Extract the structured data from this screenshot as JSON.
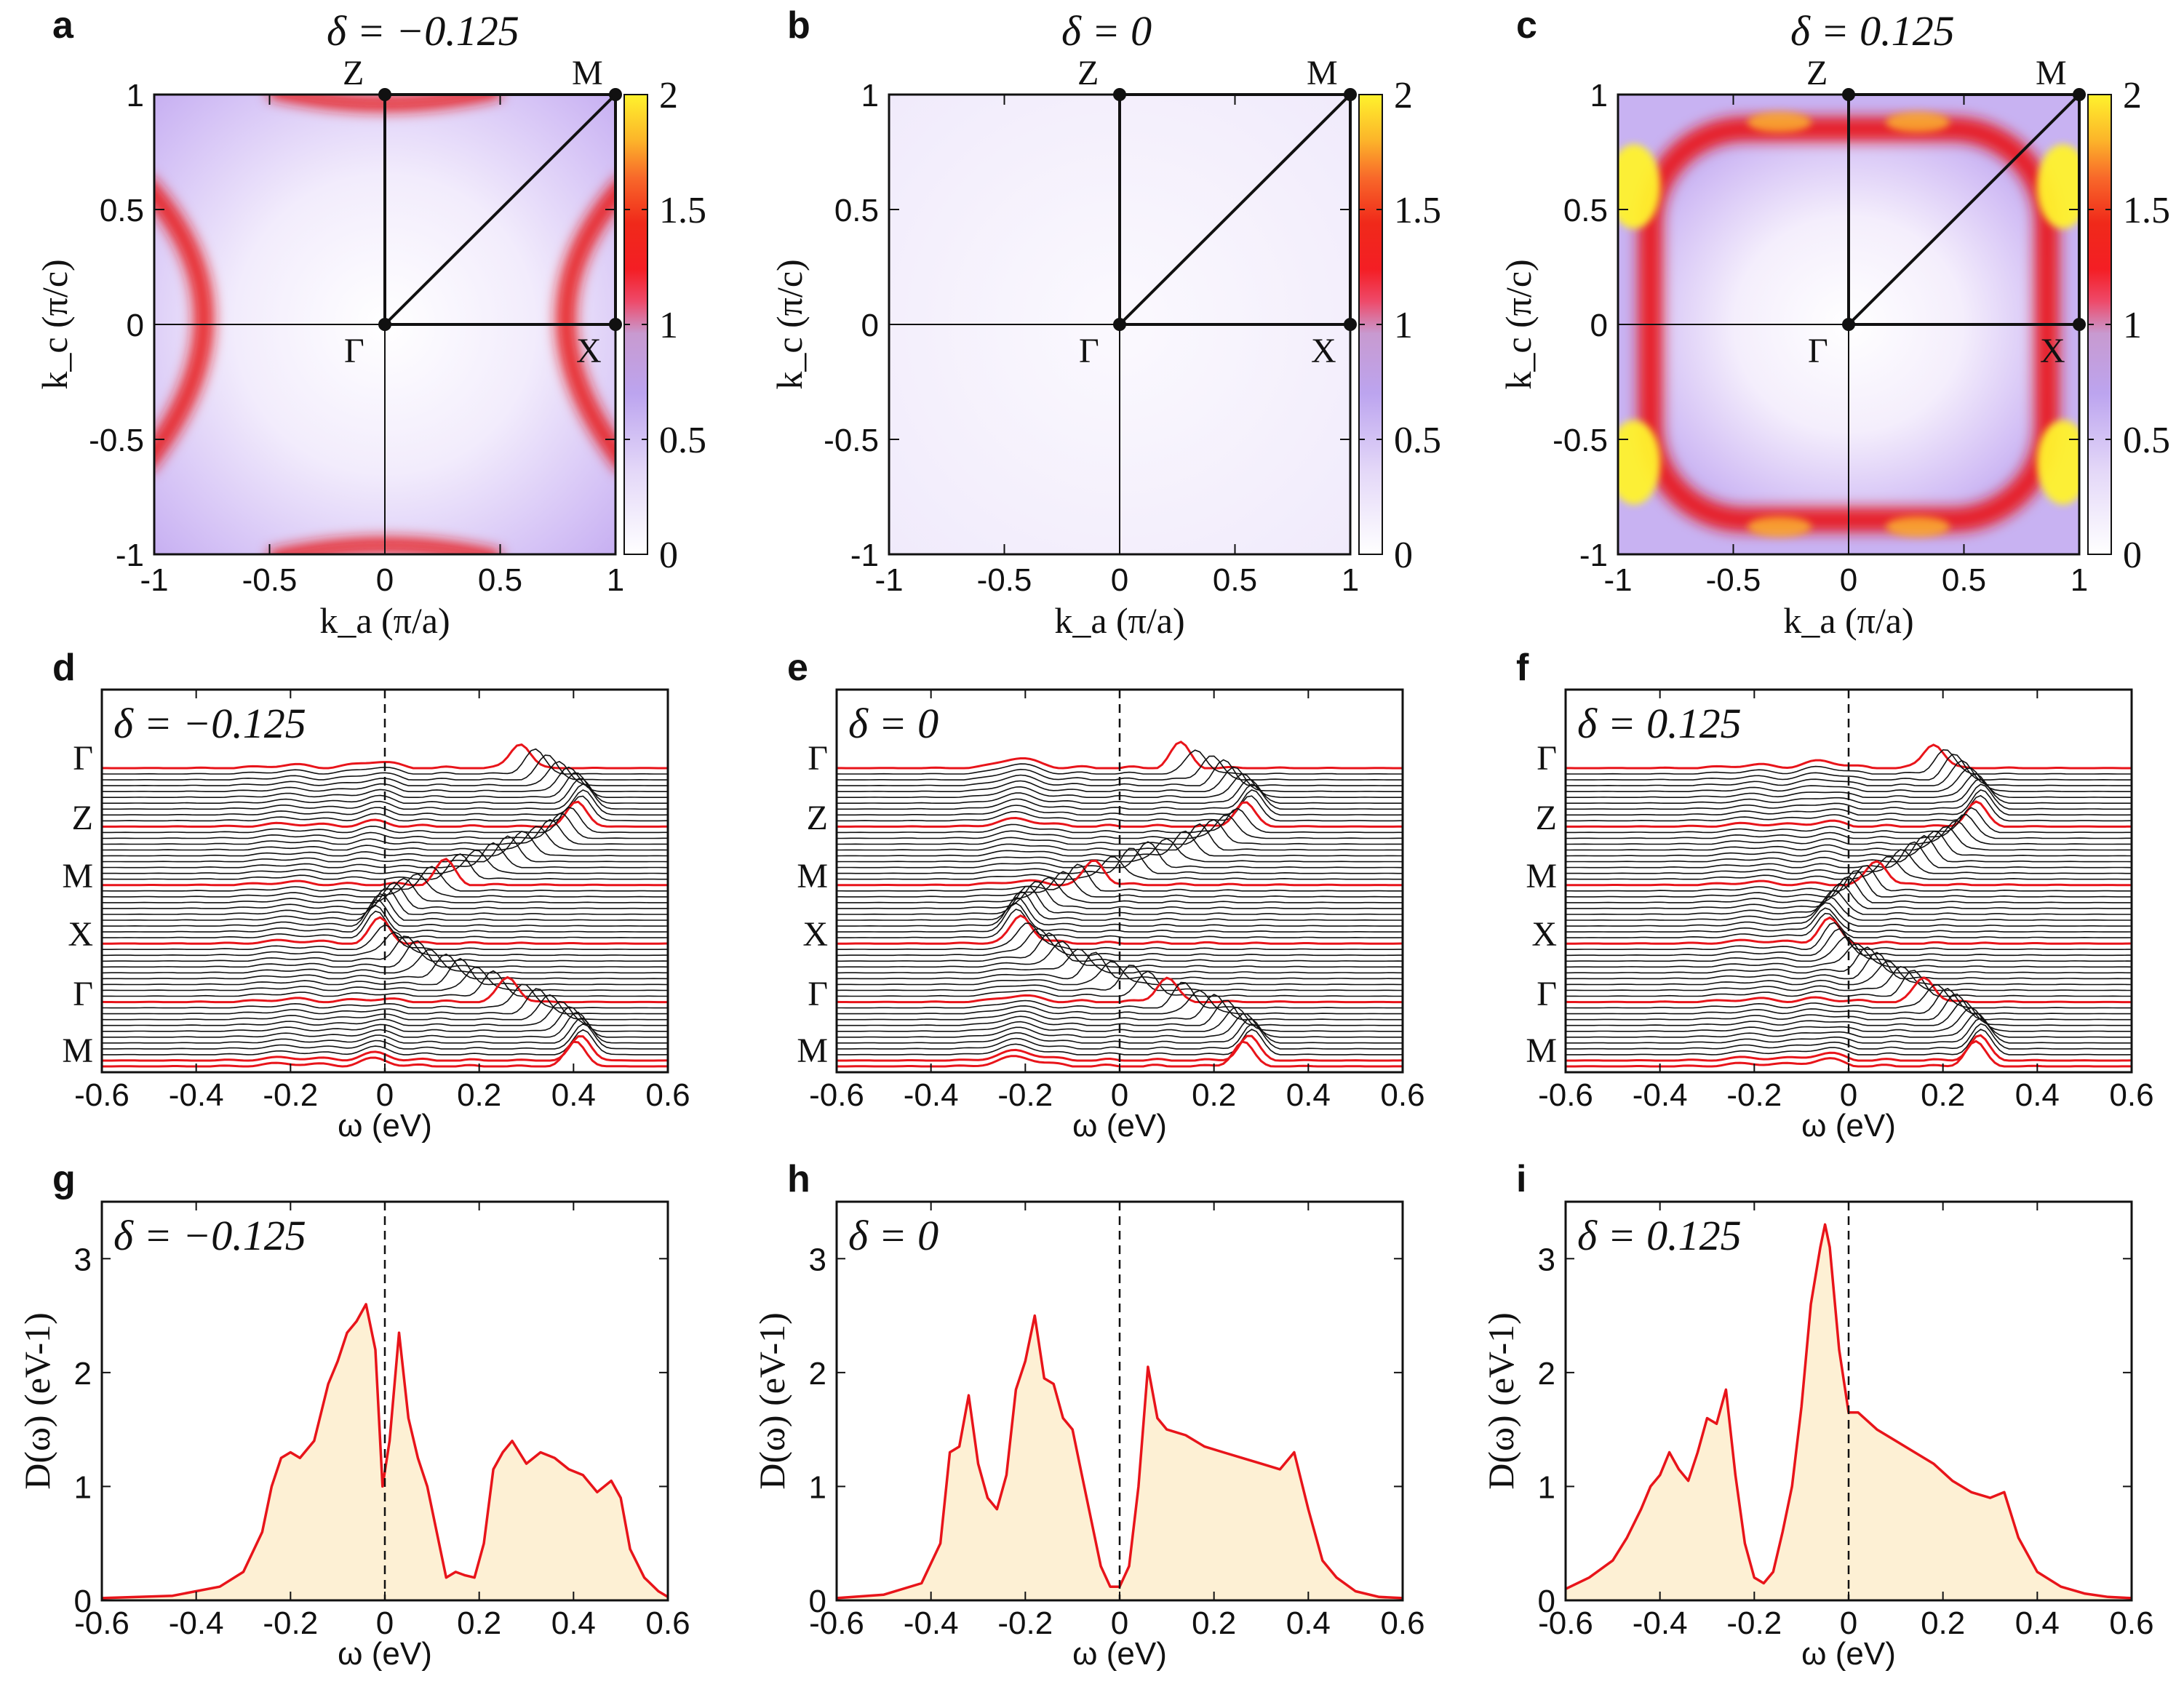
{
  "figure": {
    "panel_letters": [
      "a",
      "b",
      "c",
      "d",
      "e",
      "f",
      "g",
      "h",
      "i"
    ],
    "colors": {
      "red": "#e8141a",
      "fill": "#fdf0d4",
      "lavender": "#c9b3f2",
      "yellow": "#fff22a"
    }
  },
  "chart_data": [
    {
      "panel": "a",
      "type": "heatmap",
      "title": "δ = −0.125",
      "xlabel": "k_a (π/a)",
      "ylabel": "k_c (π/c)",
      "xlim": [
        -1,
        1
      ],
      "ylim": [
        -1,
        1
      ],
      "xticks": [
        "-1",
        "-0.5",
        "0",
        "0.5",
        "1"
      ],
      "yticks": [
        "-1",
        "-0.5",
        "0",
        "0.5",
        "1"
      ],
      "colorbar": {
        "range": [
          0,
          2
        ],
        "ticks": [
          "0",
          "0.5",
          "1",
          "1.5",
          "2"
        ]
      },
      "symmetry_points": [
        {
          "label": "Γ",
          "k": [
            0,
            0
          ]
        },
        {
          "label": "Z",
          "k": [
            0,
            1
          ]
        },
        {
          "label": "M",
          "k": [
            1,
            1
          ]
        },
        {
          "label": "X",
          "k": [
            1,
            0
          ]
        }
      ],
      "description_features": "Red arcs near ka=±0.6..1 and edges ky=±1; lavender background"
    },
    {
      "panel": "b",
      "type": "heatmap",
      "title": "δ = 0",
      "xlabel": "k_a (π/a)",
      "ylabel": "k_c (π/c)",
      "xlim": [
        -1,
        1
      ],
      "ylim": [
        -1,
        1
      ],
      "xticks": [
        "-1",
        "-0.5",
        "0",
        "0.5",
        "1"
      ],
      "yticks": [
        "-1",
        "-0.5",
        "0",
        "0.5",
        "1"
      ],
      "colorbar": {
        "range": [
          0,
          2
        ],
        "ticks": [
          "0",
          "0.5",
          "1",
          "1.5",
          "2"
        ]
      },
      "symmetry_points": [
        {
          "label": "Γ",
          "k": [
            0,
            0
          ]
        },
        {
          "label": "Z",
          "k": [
            0,
            1
          ]
        },
        {
          "label": "M",
          "k": [
            1,
            1
          ]
        },
        {
          "label": "X",
          "k": [
            1,
            0
          ]
        }
      ]
    },
    {
      "panel": "c",
      "type": "heatmap",
      "title": "δ = 0.125",
      "xlabel": "k_a (π/a)",
      "ylabel": "k_c (π/c)",
      "xlim": [
        -1,
        1
      ],
      "ylim": [
        -1,
        1
      ],
      "xticks": [
        "-1",
        "-0.5",
        "0",
        "0.5",
        "1"
      ],
      "yticks": [
        "-1",
        "-0.5",
        "0",
        "0.5",
        "1"
      ],
      "colorbar": {
        "range": [
          0,
          2
        ],
        "ticks": [
          "0",
          "0.5",
          "1",
          "1.5",
          "2"
        ]
      },
      "symmetry_points": [
        {
          "label": "Γ",
          "k": [
            0,
            0
          ]
        },
        {
          "label": "Z",
          "k": [
            0,
            1
          ]
        },
        {
          "label": "M",
          "k": [
            1,
            1
          ]
        },
        {
          "label": "X",
          "k": [
            1,
            0
          ]
        }
      ]
    },
    {
      "panel": "d",
      "type": "line",
      "title": "δ = −0.125",
      "xlabel": "ω (eV)",
      "xlim": [
        -0.6,
        0.6
      ],
      "xticks": [
        "-0.6",
        "-0.4",
        "-0.2",
        "0",
        "0.2",
        "0.4",
        "0.6"
      ],
      "path_labels": [
        "Γ",
        "Z",
        "M",
        "X",
        "Γ",
        "M"
      ],
      "peak_positions_eV": [
        -0.02,
        0.5
      ]
    },
    {
      "panel": "e",
      "type": "line",
      "title": "δ = 0",
      "xlabel": "ω (eV)",
      "xlim": [
        -0.6,
        0.6
      ],
      "xticks": [
        "-0.6",
        "-0.4",
        "-0.2",
        "0",
        "0.2",
        "0.4",
        "0.6"
      ],
      "path_labels": [
        "Γ",
        "Z",
        "M",
        "X",
        "Γ",
        "M"
      ],
      "peak_positions_eV": [
        -0.22,
        0.05,
        0.37
      ]
    },
    {
      "panel": "f",
      "type": "line",
      "title": "δ = 0.125",
      "xlabel": "ω (eV)",
      "xlim": [
        -0.6,
        0.6
      ],
      "xticks": [
        "-0.6",
        "-0.4",
        "-0.2",
        "0",
        "0.2",
        "0.4",
        "0.6"
      ],
      "path_labels": [
        "Γ",
        "Z",
        "M",
        "X",
        "Γ",
        "M"
      ],
      "peak_positions_eV": [
        -0.05,
        0.34
      ]
    },
    {
      "panel": "g",
      "type": "area",
      "title": "δ = −0.125",
      "xlabel": "ω (eV)",
      "ylabel": "D(ω) (eV-1)",
      "xlim": [
        -0.6,
        0.6
      ],
      "ylim": [
        0,
        3.5
      ],
      "xticks": [
        "-0.6",
        "-0.4",
        "-0.2",
        "0",
        "0.2",
        "0.4",
        "0.6"
      ],
      "yticks": [
        "0",
        "1",
        "2",
        "3"
      ],
      "x": [
        -0.6,
        -0.45,
        -0.35,
        -0.3,
        -0.26,
        -0.24,
        -0.22,
        -0.2,
        -0.18,
        -0.15,
        -0.12,
        -0.1,
        -0.08,
        -0.06,
        -0.04,
        -0.02,
        -0.005,
        0.01,
        0.03,
        0.05,
        0.07,
        0.09,
        0.11,
        0.13,
        0.15,
        0.17,
        0.19,
        0.21,
        0.23,
        0.25,
        0.27,
        0.3,
        0.33,
        0.36,
        0.39,
        0.42,
        0.45,
        0.48,
        0.5,
        0.52,
        0.55,
        0.58,
        0.6
      ],
      "y": [
        0.02,
        0.04,
        0.12,
        0.25,
        0.6,
        1.0,
        1.25,
        1.3,
        1.25,
        1.4,
        1.9,
        2.1,
        2.35,
        2.45,
        2.6,
        2.2,
        1.0,
        1.4,
        2.35,
        1.6,
        1.25,
        1.0,
        0.6,
        0.2,
        0.25,
        0.22,
        0.2,
        0.5,
        1.15,
        1.3,
        1.4,
        1.2,
        1.3,
        1.25,
        1.15,
        1.1,
        0.95,
        1.05,
        0.9,
        0.45,
        0.2,
        0.08,
        0.03
      ]
    },
    {
      "panel": "h",
      "type": "area",
      "title": "δ = 0",
      "xlabel": "ω (eV)",
      "ylabel": "D(ω) (eV-1)",
      "xlim": [
        -0.6,
        0.6
      ],
      "ylim": [
        0,
        3.5
      ],
      "xticks": [
        "-0.6",
        "-0.4",
        "-0.2",
        "0",
        "0.2",
        "0.4",
        "0.6"
      ],
      "yticks": [
        "0",
        "1",
        "2",
        "3"
      ],
      "x": [
        -0.6,
        -0.5,
        -0.42,
        -0.38,
        -0.36,
        -0.34,
        -0.32,
        -0.3,
        -0.28,
        -0.26,
        -0.24,
        -0.22,
        -0.2,
        -0.18,
        -0.16,
        -0.14,
        -0.12,
        -0.1,
        -0.08,
        -0.06,
        -0.04,
        -0.02,
        0,
        0.02,
        0.04,
        0.06,
        0.08,
        0.1,
        0.14,
        0.18,
        0.22,
        0.26,
        0.3,
        0.34,
        0.37,
        0.4,
        0.43,
        0.46,
        0.5,
        0.55,
        0.6
      ],
      "y": [
        0.02,
        0.05,
        0.15,
        0.5,
        1.3,
        1.35,
        1.8,
        1.2,
        0.9,
        0.8,
        1.1,
        1.85,
        2.1,
        2.5,
        1.95,
        1.9,
        1.6,
        1.5,
        1.1,
        0.7,
        0.3,
        0.12,
        0.12,
        0.3,
        1.0,
        2.05,
        1.6,
        1.5,
        1.45,
        1.35,
        1.3,
        1.25,
        1.2,
        1.15,
        1.3,
        0.8,
        0.35,
        0.2,
        0.08,
        0.03,
        0.02
      ]
    },
    {
      "panel": "i",
      "type": "area",
      "title": "δ = 0.125",
      "xlabel": "ω (eV)",
      "ylabel": "D(ω) (eV-1)",
      "xlim": [
        -0.6,
        0.6
      ],
      "ylim": [
        0,
        3.5
      ],
      "xticks": [
        "-0.6",
        "-0.4",
        "-0.2",
        "0",
        "0.2",
        "0.4",
        "0.6"
      ],
      "yticks": [
        "0",
        "1",
        "2",
        "3"
      ],
      "x": [
        -0.6,
        -0.55,
        -0.5,
        -0.47,
        -0.44,
        -0.42,
        -0.4,
        -0.38,
        -0.36,
        -0.34,
        -0.32,
        -0.3,
        -0.28,
        -0.26,
        -0.24,
        -0.22,
        -0.2,
        -0.18,
        -0.16,
        -0.14,
        -0.12,
        -0.1,
        -0.08,
        -0.06,
        -0.05,
        -0.04,
        -0.02,
        0,
        0.02,
        0.06,
        0.1,
        0.14,
        0.18,
        0.22,
        0.26,
        0.3,
        0.33,
        0.36,
        0.4,
        0.45,
        0.5,
        0.55,
        0.6
      ],
      "y": [
        0.1,
        0.2,
        0.35,
        0.55,
        0.8,
        1.0,
        1.1,
        1.3,
        1.15,
        1.05,
        1.3,
        1.6,
        1.55,
        1.85,
        1.1,
        0.5,
        0.2,
        0.15,
        0.25,
        0.6,
        1.0,
        1.7,
        2.6,
        3.1,
        3.3,
        3.1,
        2.2,
        1.65,
        1.65,
        1.5,
        1.4,
        1.3,
        1.2,
        1.05,
        0.95,
        0.9,
        0.95,
        0.55,
        0.25,
        0.12,
        0.06,
        0.03,
        0.02
      ]
    }
  ]
}
